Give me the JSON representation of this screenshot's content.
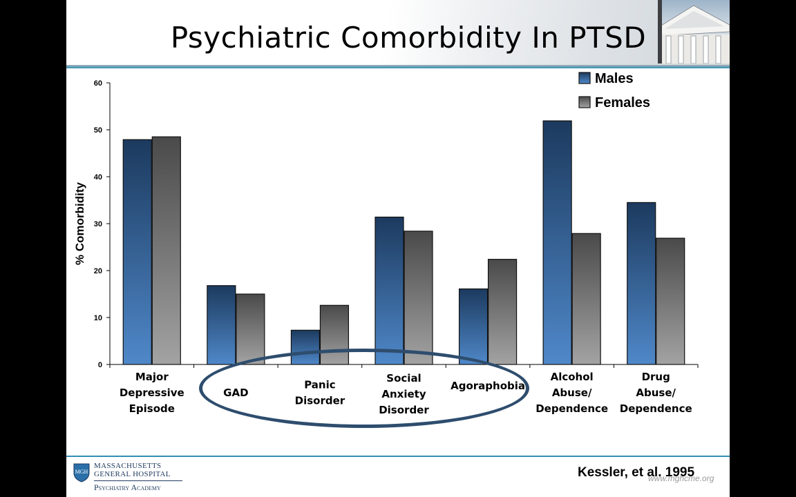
{
  "slide": {
    "title": "Psychiatric Comorbidity In PTSD",
    "citation": "Kessler, et al. 1995",
    "website": "www.mghcme.org",
    "logo": {
      "line1": "MASSACHUSETTS",
      "line2": "GENERAL HOSPITAL",
      "line3": "Psychiatry Academy",
      "shield_text": "MGH"
    }
  },
  "colors": {
    "males": "#2d5a8e",
    "females": "#6b6b6b",
    "accent_rule": "#2f8fb3",
    "circle": "#2e4d6e"
  },
  "chart_data": {
    "type": "bar",
    "title": "",
    "xlabel": "",
    "ylabel": "% Comorbidity",
    "ylim": [
      0,
      60
    ],
    "yticks": [
      0,
      10,
      20,
      30,
      40,
      50,
      60
    ],
    "categories": [
      [
        "Major",
        "Depressive",
        "Episode"
      ],
      [
        "GAD"
      ],
      [
        "Panic",
        "Disorder"
      ],
      [
        "Social",
        "Anxiety",
        "Disorder"
      ],
      [
        "Agoraphobia"
      ],
      [
        "Alcohol",
        "Abuse/",
        "Dependence"
      ],
      [
        "Drug",
        "Abuse/",
        "Dependence"
      ]
    ],
    "series": [
      {
        "name": "Males",
        "values": [
          47.9,
          16.8,
          7.3,
          31.4,
          16.1,
          51.9,
          34.5
        ]
      },
      {
        "name": "Females",
        "values": [
          48.5,
          15.0,
          12.6,
          28.4,
          22.4,
          27.9,
          26.9
        ]
      }
    ],
    "legend_position": "top-right",
    "annotation": "ellipse around GAD, Panic Disorder, Social Anxiety Disorder and Agoraphobia"
  }
}
